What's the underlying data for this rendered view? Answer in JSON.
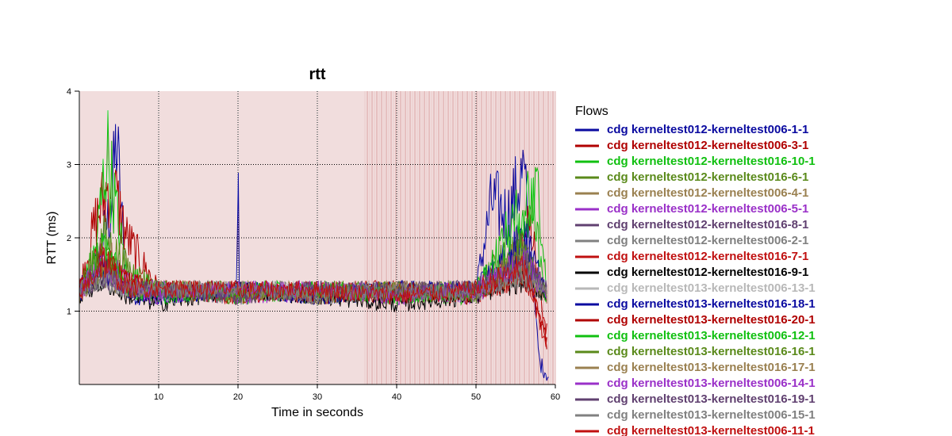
{
  "chart_data": {
    "type": "line",
    "title": "rtt",
    "xlabel": "Time in seconds",
    "ylabel": "RTT (ms)",
    "xlim": [
      0,
      60
    ],
    "ylim": [
      0,
      4
    ],
    "xticks": [
      10,
      20,
      30,
      40,
      50,
      60
    ],
    "yticks": [
      1,
      2,
      3,
      4
    ],
    "grid": true,
    "legend": {
      "title": "Flows",
      "placement": "right"
    },
    "series": [
      {
        "name": "cdg kerneltest012-kerneltest006-1-1",
        "color": "#0a0aa0",
        "x": [
          0,
          2,
          4,
          4.7,
          6,
          10,
          20,
          30,
          40,
          50,
          52,
          54,
          56,
          58,
          59.2
        ],
        "y": [
          1.3,
          1.6,
          2.4,
          3.35,
          1.2,
          1.2,
          1.3,
          1.2,
          1.25,
          1.3,
          2.5,
          2.3,
          2.9,
          0.3,
          0.1
        ]
      },
      {
        "name": "cdg kerneltest012-kerneltest006-3-1",
        "color": "#b00000",
        "x": [
          0,
          2,
          4,
          6,
          10,
          20,
          30,
          40,
          50,
          54,
          57,
          59
        ],
        "y": [
          1.3,
          2.2,
          2.8,
          2.0,
          1.3,
          1.25,
          1.3,
          1.2,
          1.3,
          1.6,
          2.2,
          0.4
        ]
      },
      {
        "name": "cdg kerneltest012-kerneltest016-10-1",
        "color": "#10c010",
        "x": [
          0,
          2,
          3.5,
          5,
          6,
          10,
          20,
          30,
          40,
          50,
          55,
          58,
          59
        ],
        "y": [
          1.2,
          1.8,
          3.2,
          2.1,
          1.5,
          1.3,
          1.2,
          1.3,
          1.25,
          1.2,
          1.7,
          2.7,
          1.1
        ]
      },
      {
        "name": "cdg kerneltest012-kerneltest016-6-1",
        "color": "#5a8a1a",
        "x": [
          0,
          3,
          6,
          10,
          20,
          30,
          40,
          50,
          55,
          59
        ],
        "y": [
          1.3,
          2.0,
          1.6,
          1.3,
          1.3,
          1.2,
          1.3,
          1.3,
          1.9,
          1.2
        ]
      },
      {
        "name": "cdg kerneltest012-kerneltest006-4-1",
        "color": "#9a8050",
        "x": [
          0,
          3,
          6,
          10,
          20,
          30,
          40,
          50,
          56,
          59
        ],
        "y": [
          1.25,
          1.9,
          1.4,
          1.2,
          1.3,
          1.3,
          1.2,
          1.3,
          1.8,
          1.1
        ]
      },
      {
        "name": "cdg kerneltest012-kerneltest006-5-1",
        "color": "#9a30c8",
        "x": [
          0,
          3,
          6,
          10,
          20,
          30,
          40,
          50,
          56,
          59
        ],
        "y": [
          1.2,
          1.7,
          1.4,
          1.3,
          1.2,
          1.25,
          1.3,
          1.2,
          1.6,
          1.2
        ]
      },
      {
        "name": "cdg kerneltest012-kerneltest016-8-1",
        "color": "#604070",
        "x": [
          0,
          3,
          6,
          10,
          20,
          30,
          40,
          50,
          56,
          59
        ],
        "y": [
          1.3,
          1.6,
          1.3,
          1.3,
          1.3,
          1.2,
          1.3,
          1.3,
          1.7,
          1.3
        ]
      },
      {
        "name": "cdg kerneltest012-kerneltest006-2-1",
        "color": "#808080",
        "x": [
          0,
          3,
          6,
          10,
          20,
          30,
          40,
          50,
          56,
          59
        ],
        "y": [
          1.2,
          1.5,
          1.3,
          1.25,
          1.3,
          1.3,
          1.2,
          1.3,
          1.5,
          1.2
        ]
      },
      {
        "name": "cdg kerneltest012-kerneltest016-7-1",
        "color": "#c01010",
        "x": [
          0,
          3,
          6,
          10,
          20,
          30,
          40,
          50,
          56,
          59
        ],
        "y": [
          1.3,
          1.8,
          1.4,
          1.3,
          1.2,
          1.3,
          1.3,
          1.2,
          1.6,
          0.5
        ]
      },
      {
        "name": "cdg kerneltest012-kerneltest016-9-1",
        "color": "#000000",
        "x": [
          0,
          3,
          6,
          10,
          20,
          30,
          40,
          50,
          56,
          59
        ],
        "y": [
          1.2,
          1.4,
          1.2,
          1.1,
          1.3,
          1.2,
          1.1,
          1.2,
          1.4,
          1.2
        ]
      },
      {
        "name": "cdg kerneltest013-kerneltest006-13-1",
        "color": "#b8b8b8",
        "x": [
          0,
          3,
          6,
          10,
          20,
          30,
          40,
          50,
          56,
          59
        ],
        "y": [
          1.3,
          1.5,
          1.3,
          1.3,
          1.3,
          1.3,
          1.3,
          1.3,
          1.5,
          1.3
        ]
      },
      {
        "name": "cdg kerneltest013-kerneltest016-18-1",
        "color": "#0a0aa0",
        "x": [
          0,
          3,
          6,
          10,
          19.8,
          20,
          20.2,
          30,
          40,
          50,
          56,
          59
        ],
        "y": [
          1.2,
          1.6,
          1.3,
          1.2,
          1.3,
          2.7,
          1.3,
          1.2,
          1.3,
          1.3,
          2.0,
          1.2
        ]
      },
      {
        "name": "cdg kerneltest013-kerneltest016-20-1",
        "color": "#b00000",
        "x": [
          0,
          3,
          6,
          10,
          20,
          30,
          40,
          50,
          56,
          59
        ],
        "y": [
          1.3,
          1.7,
          1.4,
          1.3,
          1.3,
          1.2,
          1.3,
          1.2,
          1.5,
          0.6
        ]
      },
      {
        "name": "cdg kerneltest013-kerneltest006-12-1",
        "color": "#10c010",
        "x": [
          0,
          3,
          6,
          10,
          20,
          30,
          40,
          50,
          57,
          59
        ],
        "y": [
          1.2,
          1.9,
          1.3,
          1.2,
          1.3,
          1.3,
          1.2,
          1.3,
          2.6,
          1.0
        ]
      },
      {
        "name": "cdg kerneltest013-kerneltest016-16-1",
        "color": "#5a8a1a",
        "x": [
          0,
          3,
          6,
          10,
          20,
          30,
          40,
          50,
          56,
          59
        ],
        "y": [
          1.3,
          1.6,
          1.3,
          1.3,
          1.2,
          1.3,
          1.3,
          1.2,
          1.8,
          1.2
        ]
      },
      {
        "name": "cdg kerneltest013-kerneltest016-17-1",
        "color": "#9a8050",
        "x": [
          0,
          3,
          6,
          10,
          20,
          30,
          40,
          50,
          56,
          59
        ],
        "y": [
          1.2,
          1.5,
          1.3,
          1.3,
          1.3,
          1.2,
          1.3,
          1.3,
          1.6,
          1.2
        ]
      },
      {
        "name": "cdg kerneltest013-kerneltest006-14-1",
        "color": "#9a30c8",
        "x": [
          0,
          3,
          6,
          10,
          20,
          30,
          40,
          50,
          56,
          59
        ],
        "y": [
          1.3,
          1.6,
          1.3,
          1.2,
          1.3,
          1.3,
          1.2,
          1.3,
          1.7,
          1.2
        ]
      },
      {
        "name": "cdg kerneltest013-kerneltest016-19-1",
        "color": "#604070",
        "x": [
          0,
          3,
          6,
          10,
          20,
          30,
          40,
          50,
          56,
          59
        ],
        "y": [
          1.2,
          1.5,
          1.3,
          1.3,
          1.2,
          1.3,
          1.3,
          1.3,
          1.6,
          1.3
        ]
      },
      {
        "name": "cdg kerneltest013-kerneltest006-15-1",
        "color": "#808080",
        "x": [
          0,
          3,
          6,
          10,
          20,
          30,
          40,
          50,
          56,
          59
        ],
        "y": [
          1.3,
          1.4,
          1.3,
          1.3,
          1.3,
          1.2,
          1.3,
          1.2,
          1.5,
          1.2
        ]
      },
      {
        "name": "cdg kerneltest013-kerneltest006-11-1",
        "color": "#c01010",
        "x": [
          0,
          3,
          6,
          10,
          20,
          30,
          40,
          50,
          56,
          59
        ],
        "y": [
          1.2,
          1.7,
          1.3,
          1.3,
          1.3,
          1.3,
          1.2,
          1.3,
          1.6,
          0.7
        ]
      }
    ]
  }
}
